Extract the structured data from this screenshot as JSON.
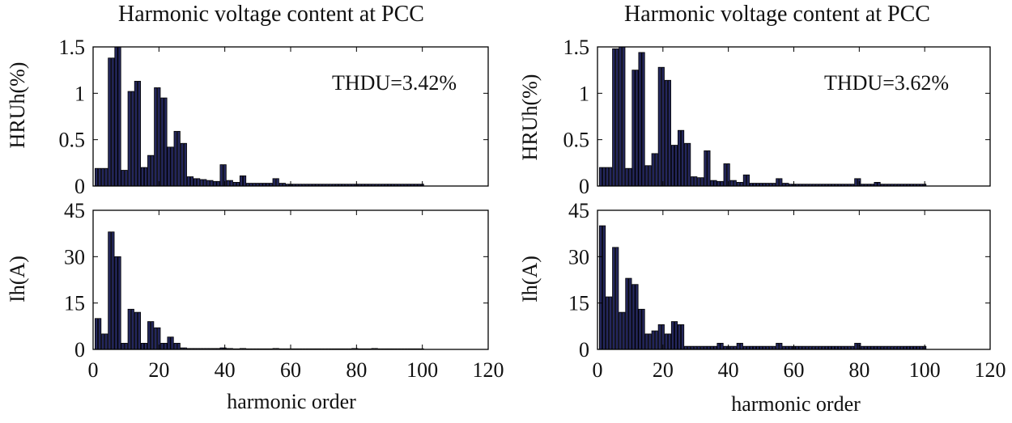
{
  "chart_data": [
    {
      "type": "bar",
      "panel": "left-top",
      "title": "Harmonic voltage content at PCC",
      "xlabel": "",
      "ylabel": "HRUh(%)",
      "annotation": "THDU=3.42%",
      "xlim": [
        0,
        120
      ],
      "ylim": [
        0,
        1.5
      ],
      "xticks": [
        "0",
        "20",
        "40",
        "60",
        "80",
        "100",
        "120"
      ],
      "yticks": [
        "0",
        "0.5",
        "1",
        "1.5"
      ],
      "x": [
        1,
        2,
        3,
        4,
        5,
        6,
        7,
        8,
        9,
        10,
        11,
        12,
        13,
        14,
        15,
        16,
        17,
        18,
        19,
        20,
        21,
        22,
        23,
        24,
        25,
        26,
        27,
        28,
        29,
        30,
        31,
        32,
        33,
        34,
        35,
        36,
        37,
        38,
        39,
        40,
        41,
        42,
        43,
        44,
        45,
        46,
        47,
        48,
        49,
        50,
        51,
        52,
        53,
        54,
        55,
        56,
        57,
        58,
        59,
        60,
        61,
        62,
        63,
        64,
        65,
        66,
        67,
        68,
        69,
        70,
        71,
        72,
        73,
        74,
        75,
        76,
        77,
        78,
        79,
        80,
        81,
        82,
        83,
        84,
        85,
        86,
        87,
        88,
        89,
        90,
        91,
        92,
        93,
        94,
        95,
        96,
        97,
        98,
        99,
        100
      ],
      "values": [
        0.19,
        0.19,
        0.19,
        0.19,
        1.38,
        1.38,
        1.5,
        1.5,
        0.17,
        0.17,
        1.02,
        1.02,
        1.13,
        1.13,
        0.2,
        0.2,
        0.33,
        0.33,
        1.06,
        1.06,
        0.95,
        0.95,
        0.42,
        0.42,
        0.59,
        0.59,
        0.46,
        0.46,
        0.1,
        0.1,
        0.08,
        0.08,
        0.07,
        0.07,
        0.06,
        0.06,
        0.05,
        0.05,
        0.23,
        0.23,
        0.06,
        0.06,
        0.04,
        0.04,
        0.11,
        0.11,
        0.03,
        0.03,
        0.03,
        0.03,
        0.03,
        0.03,
        0.03,
        0.03,
        0.08,
        0.08,
        0.03,
        0.03,
        0.02,
        0.02,
        0.02,
        0.02,
        0.02,
        0.02,
        0.02,
        0.02,
        0.02,
        0.02,
        0.02,
        0.02,
        0.02,
        0.02,
        0.02,
        0.02,
        0.02,
        0.02,
        0.02,
        0.02,
        0.02,
        0.02,
        0.02,
        0.02,
        0.02,
        0.02,
        0.02,
        0.02,
        0.02,
        0.02,
        0.02,
        0.02,
        0.02,
        0.02,
        0.02,
        0.02,
        0.02,
        0.02,
        0.02,
        0.02,
        0.02,
        0.02
      ]
    },
    {
      "type": "bar",
      "panel": "left-bottom",
      "title": "",
      "xlabel": "harmonic order",
      "ylabel": "Ih(A)",
      "xlim": [
        0,
        120
      ],
      "ylim": [
        0,
        45
      ],
      "xticks": [
        "0",
        "20",
        "40",
        "60",
        "80",
        "100",
        "120"
      ],
      "yticks": [
        "0",
        "15",
        "30",
        "45"
      ],
      "x": [
        1,
        2,
        3,
        4,
        5,
        6,
        7,
        8,
        9,
        10,
        11,
        12,
        13,
        14,
        15,
        16,
        17,
        18,
        19,
        20,
        21,
        22,
        23,
        24,
        25,
        26,
        27,
        28,
        29,
        30,
        31,
        32,
        33,
        34,
        35,
        36,
        37,
        38,
        39,
        40,
        41,
        42,
        43,
        44,
        45,
        46,
        47,
        48,
        49,
        50,
        51,
        52,
        53,
        54,
        55,
        56,
        57,
        58,
        59,
        60,
        61,
        62,
        63,
        64,
        65,
        66,
        67,
        68,
        69,
        70,
        71,
        72,
        73,
        74,
        75,
        76,
        77,
        78,
        79,
        80,
        81,
        82,
        83,
        84,
        85,
        86,
        87,
        88,
        89,
        90,
        91,
        92,
        93,
        94,
        95,
        96,
        97,
        98,
        99,
        100
      ],
      "values": [
        10,
        10,
        5,
        5,
        38,
        38,
        30,
        30,
        2,
        2,
        13,
        13,
        12,
        12,
        2,
        2,
        9,
        9,
        7,
        7,
        2,
        2,
        4,
        4,
        2,
        2,
        0.5,
        0.5,
        0.3,
        0.3,
        0.3,
        0.3,
        0.3,
        0.3,
        0.3,
        0.3,
        0.3,
        0.3,
        0.5,
        0.5,
        0.3,
        0.3,
        0.2,
        0.2,
        0.3,
        0.3,
        0.2,
        0.2,
        0.2,
        0.2,
        0.2,
        0.2,
        0.2,
        0.2,
        0.3,
        0.3,
        0.2,
        0.2,
        0.2,
        0.2,
        0.2,
        0.2,
        0.2,
        0.2,
        0.2,
        0.2,
        0.2,
        0.2,
        0.2,
        0.2,
        0.2,
        0.2,
        0.2,
        0.2,
        0.2,
        0.2,
        0.2,
        0.2,
        0.3,
        0.3,
        0.2,
        0.2,
        0.2,
        0.2,
        0.3,
        0.3,
        0.2,
        0.2,
        0.2,
        0.2,
        0.2,
        0.2,
        0.2,
        0.2,
        0.2,
        0.2,
        0.2,
        0.2,
        0.2,
        0.2
      ]
    },
    {
      "type": "bar",
      "panel": "right-top",
      "title": "Harmonic voltage content at PCC",
      "xlabel": "",
      "ylabel": "HRUh(%)",
      "annotation": "THDU=3.62%",
      "xlim": [
        0,
        120
      ],
      "ylim": [
        0,
        1.5
      ],
      "xticks": [
        "0",
        "20",
        "40",
        "60",
        "80",
        "100",
        "120"
      ],
      "yticks": [
        "0",
        "0.5",
        "1",
        "1.5"
      ],
      "x": [
        1,
        2,
        3,
        4,
        5,
        6,
        7,
        8,
        9,
        10,
        11,
        12,
        13,
        14,
        15,
        16,
        17,
        18,
        19,
        20,
        21,
        22,
        23,
        24,
        25,
        26,
        27,
        28,
        29,
        30,
        31,
        32,
        33,
        34,
        35,
        36,
        37,
        38,
        39,
        40,
        41,
        42,
        43,
        44,
        45,
        46,
        47,
        48,
        49,
        50,
        51,
        52,
        53,
        54,
        55,
        56,
        57,
        58,
        59,
        60,
        61,
        62,
        63,
        64,
        65,
        66,
        67,
        68,
        69,
        70,
        71,
        72,
        73,
        74,
        75,
        76,
        77,
        78,
        79,
        80,
        81,
        82,
        83,
        84,
        85,
        86,
        87,
        88,
        89,
        90,
        91,
        92,
        93,
        94,
        95,
        96,
        97,
        98,
        99,
        100
      ],
      "values": [
        0.2,
        0.2,
        0.2,
        0.2,
        1.48,
        1.48,
        1.5,
        1.5,
        0.19,
        0.19,
        1.25,
        1.25,
        1.44,
        1.44,
        0.22,
        0.22,
        0.35,
        0.35,
        1.28,
        1.28,
        1.14,
        1.14,
        0.44,
        0.44,
        0.6,
        0.6,
        0.46,
        0.46,
        0.1,
        0.1,
        0.09,
        0.09,
        0.38,
        0.38,
        0.06,
        0.06,
        0.05,
        0.05,
        0.24,
        0.24,
        0.06,
        0.06,
        0.04,
        0.04,
        0.12,
        0.12,
        0.03,
        0.03,
        0.03,
        0.03,
        0.03,
        0.03,
        0.03,
        0.03,
        0.08,
        0.08,
        0.03,
        0.03,
        0.02,
        0.02,
        0.02,
        0.02,
        0.02,
        0.02,
        0.02,
        0.02,
        0.02,
        0.02,
        0.02,
        0.02,
        0.02,
        0.02,
        0.02,
        0.02,
        0.02,
        0.02,
        0.02,
        0.02,
        0.08,
        0.08,
        0.02,
        0.02,
        0.02,
        0.02,
        0.04,
        0.04,
        0.02,
        0.02,
        0.02,
        0.02,
        0.02,
        0.02,
        0.02,
        0.02,
        0.02,
        0.02,
        0.02,
        0.02,
        0.02,
        0.02
      ]
    },
    {
      "type": "bar",
      "panel": "right-bottom",
      "title": "",
      "xlabel": "harmonic order",
      "ylabel": "Ih(A)",
      "xlim": [
        0,
        120
      ],
      "ylim": [
        0,
        45
      ],
      "xticks": [
        "0",
        "20",
        "40",
        "60",
        "80",
        "100",
        "120"
      ],
      "yticks": [
        "0",
        "15",
        "30",
        "45"
      ],
      "x": [
        1,
        2,
        3,
        4,
        5,
        6,
        7,
        8,
        9,
        10,
        11,
        12,
        13,
        14,
        15,
        16,
        17,
        18,
        19,
        20,
        21,
        22,
        23,
        24,
        25,
        26,
        27,
        28,
        29,
        30,
        31,
        32,
        33,
        34,
        35,
        36,
        37,
        38,
        39,
        40,
        41,
        42,
        43,
        44,
        45,
        46,
        47,
        48,
        49,
        50,
        51,
        52,
        53,
        54,
        55,
        56,
        57,
        58,
        59,
        60,
        61,
        62,
        63,
        64,
        65,
        66,
        67,
        68,
        69,
        70,
        71,
        72,
        73,
        74,
        75,
        76,
        77,
        78,
        79,
        80,
        81,
        82,
        83,
        84,
        85,
        86,
        87,
        88,
        89,
        90,
        91,
        92,
        93,
        94,
        95,
        96,
        97,
        98,
        99,
        100
      ],
      "values": [
        40,
        40,
        17,
        17,
        33,
        33,
        12,
        12,
        23,
        23,
        21,
        21,
        13,
        13,
        5,
        5,
        6,
        6,
        8,
        8,
        5,
        5,
        9,
        9,
        8,
        8,
        1,
        1,
        1,
        1,
        1,
        1,
        1,
        1,
        1,
        1,
        2,
        2,
        1,
        1,
        1,
        1,
        2,
        2,
        1,
        1,
        1,
        1,
        1,
        1,
        1,
        1,
        1,
        1,
        2,
        2,
        1,
        1,
        1,
        1,
        1,
        1,
        1,
        1,
        1,
        1,
        1,
        1,
        1,
        1,
        1,
        1,
        1,
        1,
        1,
        1,
        1,
        1,
        2,
        2,
        1,
        1,
        1,
        1,
        1,
        1,
        1,
        1,
        1,
        1,
        1,
        1,
        1,
        1,
        1,
        1,
        1,
        1,
        1,
        1
      ]
    }
  ],
  "colors": {
    "bar_fill": "#24275c",
    "bar_stroke": "#000000",
    "axes": "#000000"
  }
}
